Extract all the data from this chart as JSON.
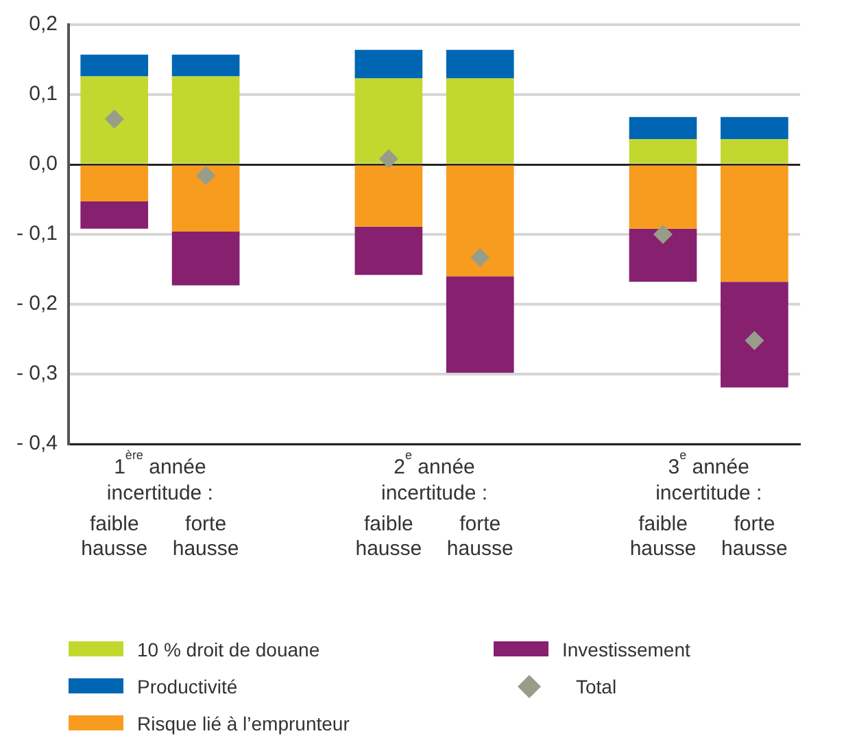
{
  "chart_data": {
    "type": "bar",
    "stacked": true,
    "categories": [
      "faible hausse",
      "forte hausse",
      null,
      "faible hausse",
      "forte hausse",
      null,
      "faible hausse",
      "forte hausse"
    ],
    "series": [
      {
        "name": "10 % droit de douane",
        "color": "#c2d82f",
        "values": [
          0.126,
          0.126,
          null,
          0.123,
          0.123,
          null,
          0.036,
          0.036
        ]
      },
      {
        "name": "Productivité",
        "color": "#0066b3",
        "values": [
          0.031,
          0.031,
          null,
          0.041,
          0.041,
          null,
          0.032,
          0.032
        ]
      },
      {
        "name": "Risque lié à l’emprunteur",
        "color": "#f79c1e",
        "values": [
          -0.053,
          -0.096,
          null,
          -0.089,
          -0.16,
          null,
          -0.092,
          -0.168
        ]
      },
      {
        "name": "Investissement",
        "color": "#86206f",
        "values": [
          -0.039,
          -0.077,
          null,
          -0.069,
          -0.138,
          null,
          -0.076,
          -0.151
        ]
      },
      {
        "name": "Total",
        "type": "scatter",
        "color": "#989d8a",
        "marker": "diamond",
        "values": [
          0.065,
          -0.016,
          null,
          0.008,
          -0.133,
          null,
          -0.1,
          -0.252
        ]
      }
    ],
    "ylim": [
      -0.4,
      0.2
    ],
    "yticks": [
      {
        "value": -0.4,
        "label": "- 0,4"
      },
      {
        "value": -0.3,
        "label": "- 0,3"
      },
      {
        "value": -0.2,
        "label": "- 0,2"
      },
      {
        "value": -0.1,
        "label": "- 0,1"
      },
      {
        "value": 0,
        "label": "0,0"
      },
      {
        "value": 0.1,
        "label": "0,1"
      },
      {
        "value": 0.2,
        "label": "0,2"
      }
    ],
    "annotations": [
      "1$^{ère}$ année incertitude :",
      "2$^{e}$ année incertitude :",
      "3$^{e}$ année incertitude :"
    ],
    "grid": "y",
    "legend": "bottom"
  }
}
